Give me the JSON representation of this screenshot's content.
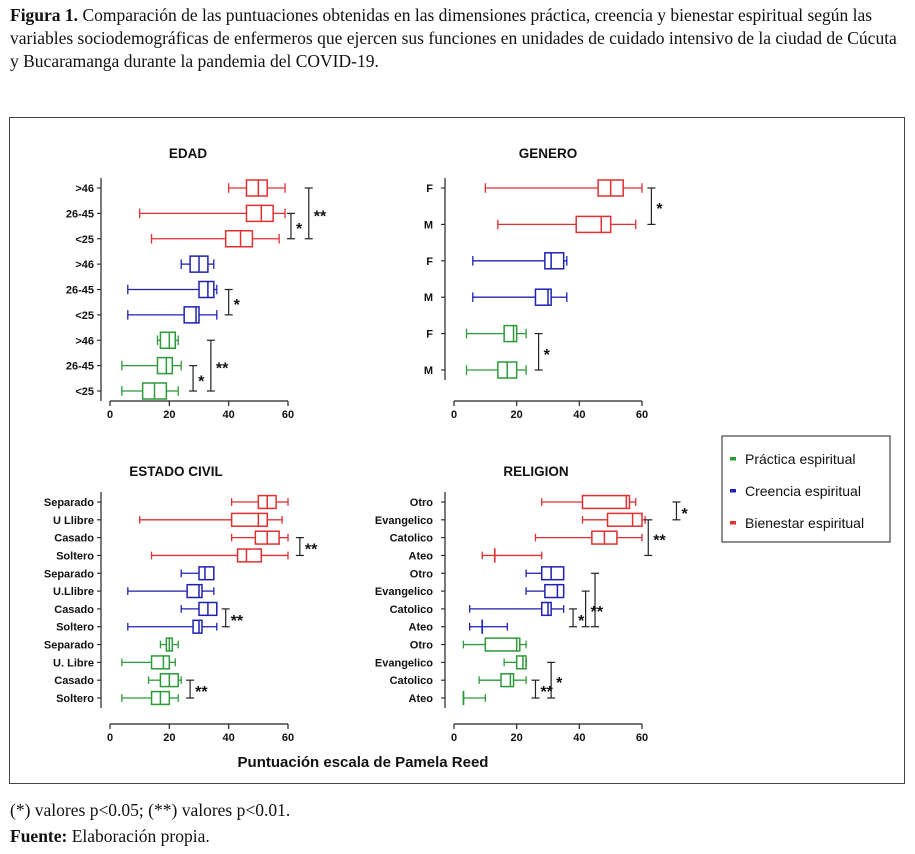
{
  "caption": {
    "label": "Figura 1.",
    "text": "Comparación de las puntuaciones obtenidas en las dimensiones práctica, creencia y bienestar espiritual según las variables sociodemográficas de enfermeros que ejercen sus funciones en unidades de cuidado intensivo de la ciudad de Cúcuta y Bucaramanga durante la pandemia del COVID-19."
  },
  "colors": {
    "practica": "#2e9a3a",
    "creencia": "#1f22b0",
    "bienestar": "#e03030"
  },
  "chart_data": {
    "type": "boxplot",
    "xlabel": "Puntuación escala de Pamela Reed",
    "xlim": [
      0,
      60
    ],
    "xticks": [
      "0",
      "20",
      "40",
      "60"
    ],
    "legend": {
      "position": "right",
      "items": [
        {
          "label": "Práctica espiritual",
          "color": "#2e9a3a"
        },
        {
          "label": "Creencia espiritual",
          "color": "#1f22b0"
        },
        {
          "label": "Bienestar espiritual",
          "color": "#e03030"
        }
      ]
    },
    "panels": [
      {
        "title": "EDAD",
        "boxes": [
          {
            "label": ">46",
            "series": "bienestar",
            "min": 40,
            "q1": 46,
            "median": 50,
            "q3": 53,
            "max": 59
          },
          {
            "label": "26-45",
            "series": "bienestar",
            "min": 10,
            "q1": 46,
            "median": 51,
            "q3": 55,
            "max": 59
          },
          {
            "label": "<25",
            "series": "bienestar",
            "min": 14,
            "q1": 39,
            "median": 44,
            "q3": 48,
            "max": 57
          },
          {
            "label": ">46",
            "series": "creencia",
            "min": 24,
            "q1": 27,
            "median": 30,
            "q3": 33,
            "max": 35
          },
          {
            "label": "26-45",
            "series": "creencia",
            "min": 6,
            "q1": 30,
            "median": 33,
            "q3": 35,
            "max": 36
          },
          {
            "label": "<25",
            "series": "creencia",
            "min": 6,
            "q1": 25,
            "median": 29,
            "q3": 30,
            "max": 36
          },
          {
            "label": ">46",
            "series": "practica",
            "min": 16,
            "q1": 17,
            "median": 20,
            "q3": 22,
            "max": 23
          },
          {
            "label": "26-45",
            "series": "practica",
            "min": 4,
            "q1": 16,
            "median": 19,
            "q3": 21,
            "max": 24
          },
          {
            "label": "<25",
            "series": "practica",
            "min": 4,
            "q1": 11,
            "median": 15,
            "q3": 19,
            "max": 23
          }
        ],
        "brackets": [
          {
            "from": 1,
            "to": 2,
            "x": 61,
            "label": "*"
          },
          {
            "from": 0,
            "to": 2,
            "x": 67,
            "label": "**"
          },
          {
            "from": 4,
            "to": 5,
            "x": 40,
            "label": "*"
          },
          {
            "from": 7,
            "to": 8,
            "x": 28,
            "label": "*"
          },
          {
            "from": 6,
            "to": 8,
            "x": 34,
            "label": "**"
          }
        ]
      },
      {
        "title": "GENERO",
        "boxes": [
          {
            "label": "F",
            "series": "bienestar",
            "min": 10,
            "q1": 46,
            "median": 50,
            "q3": 54,
            "max": 60
          },
          {
            "label": "M",
            "series": "bienestar",
            "min": 14,
            "q1": 39,
            "median": 47,
            "q3": 50,
            "max": 58
          },
          {
            "label": "F",
            "series": "creencia",
            "min": 6,
            "q1": 29,
            "median": 31,
            "q3": 35,
            "max": 36
          },
          {
            "label": "M",
            "series": "creencia",
            "min": 6,
            "q1": 26,
            "median": 30,
            "q3": 31,
            "max": 36
          },
          {
            "label": "F",
            "series": "practica",
            "min": 4,
            "q1": 16,
            "median": 19,
            "q3": 20,
            "max": 23
          },
          {
            "label": "M",
            "series": "practica",
            "min": 4,
            "q1": 14,
            "median": 17,
            "q3": 20,
            "max": 23
          }
        ],
        "brackets": [
          {
            "from": 0,
            "to": 1,
            "x": 63,
            "label": "*"
          },
          {
            "from": 4,
            "to": 5,
            "x": 27,
            "label": "*"
          }
        ]
      },
      {
        "title": "ESTADO CIVIL",
        "boxes": [
          {
            "label": "Separado",
            "series": "bienestar",
            "min": 41,
            "q1": 50,
            "median": 53,
            "q3": 56,
            "max": 60
          },
          {
            "label": "U Llibre",
            "series": "bienestar",
            "min": 10,
            "q1": 41,
            "median": 50,
            "q3": 53,
            "max": 58
          },
          {
            "label": "Casado",
            "series": "bienestar",
            "min": 41,
            "q1": 49,
            "median": 53,
            "q3": 57,
            "max": 60
          },
          {
            "label": "Soltero",
            "series": "bienestar",
            "min": 14,
            "q1": 43,
            "median": 46,
            "q3": 51,
            "max": 60
          },
          {
            "label": "Separado",
            "series": "creencia",
            "min": 24,
            "q1": 30,
            "median": 32,
            "q3": 35,
            "max": 35
          },
          {
            "label": "U.Llibre",
            "series": "creencia",
            "min": 6,
            "q1": 26,
            "median": 30,
            "q3": 31,
            "max": 35
          },
          {
            "label": "Casado",
            "series": "creencia",
            "min": 24,
            "q1": 30,
            "median": 33,
            "q3": 36,
            "max": 36
          },
          {
            "label": "Soltero",
            "series": "creencia",
            "min": 6,
            "q1": 28,
            "median": 30,
            "q3": 31,
            "max": 36
          },
          {
            "label": "Separado",
            "series": "practica",
            "min": 17,
            "q1": 19,
            "median": 20,
            "q3": 21,
            "max": 23
          },
          {
            "label": "U. Libre",
            "series": "practica",
            "min": 4,
            "q1": 14,
            "median": 18,
            "q3": 20,
            "max": 22
          },
          {
            "label": "Casado",
            "series": "practica",
            "min": 13,
            "q1": 17,
            "median": 20,
            "q3": 23,
            "max": 24
          },
          {
            "label": "Soltero",
            "series": "practica",
            "min": 4,
            "q1": 14,
            "median": 17,
            "q3": 20,
            "max": 23
          }
        ],
        "brackets": [
          {
            "from": 2,
            "to": 3,
            "x": 64,
            "label": "**"
          },
          {
            "from": 6,
            "to": 7,
            "x": 39,
            "label": "**"
          },
          {
            "from": 10,
            "to": 11,
            "x": 27,
            "label": "**"
          }
        ]
      },
      {
        "title": "RELIGION",
        "boxes": [
          {
            "label": "Otro",
            "series": "bienestar",
            "min": 28,
            "q1": 41,
            "median": 55,
            "q3": 56,
            "max": 58
          },
          {
            "label": "Evangelico",
            "series": "bienestar",
            "min": 41,
            "q1": 49,
            "median": 57,
            "q3": 60,
            "max": 61
          },
          {
            "label": "Catolico",
            "series": "bienestar",
            "min": 26,
            "q1": 44,
            "median": 48,
            "q3": 52,
            "max": 60
          },
          {
            "label": "Ateo",
            "series": "bienestar",
            "min": 9,
            "q1": 13,
            "median": 13,
            "q3": 13,
            "max": 28
          },
          {
            "label": "Otro",
            "series": "creencia",
            "min": 23,
            "q1": 28,
            "median": 31,
            "q3": 35,
            "max": 35
          },
          {
            "label": "Evangelico",
            "series": "creencia",
            "min": 23,
            "q1": 29,
            "median": 33,
            "q3": 35,
            "max": 35
          },
          {
            "label": "Catolico",
            "series": "creencia",
            "min": 5,
            "q1": 28,
            "median": 30,
            "q3": 31,
            "max": 35
          },
          {
            "label": "Ateo",
            "series": "creencia",
            "min": 5,
            "q1": 9,
            "median": 9,
            "q3": 9,
            "max": 17
          },
          {
            "label": "Otro",
            "series": "practica",
            "min": 3,
            "q1": 10,
            "median": 20,
            "q3": 21,
            "max": 23
          },
          {
            "label": "Evangelico",
            "series": "practica",
            "min": 16,
            "q1": 20,
            "median": 22,
            "q3": 23,
            "max": 23
          },
          {
            "label": "Catolico",
            "series": "practica",
            "min": 8,
            "q1": 15,
            "median": 18,
            "q3": 19,
            "max": 23
          },
          {
            "label": "Ateo",
            "series": "practica",
            "min": 3,
            "q1": 3,
            "median": 3,
            "q3": 3,
            "max": 10
          }
        ],
        "brackets": [
          {
            "from": 1,
            "to": 3,
            "x": 62,
            "label": "**"
          },
          {
            "from": 0,
            "to": 1,
            "x": 71,
            "label": "*"
          },
          {
            "from": 6,
            "to": 7,
            "x": 38,
            "label": "*"
          },
          {
            "from": 5,
            "to": 7,
            "x": 42,
            "label": "**"
          },
          {
            "from": 4,
            "to": 7,
            "x": 45,
            "label": ""
          },
          {
            "from": 10,
            "to": 11,
            "x": 26,
            "label": "**"
          },
          {
            "from": 9,
            "to": 11,
            "x": 31,
            "label": "*"
          }
        ]
      }
    ]
  },
  "footer": {
    "note": "(*) valores p<0.05; (**) valores p<0.01.",
    "source_label": "Fuente:",
    "source_text": "Elaboración propia."
  }
}
